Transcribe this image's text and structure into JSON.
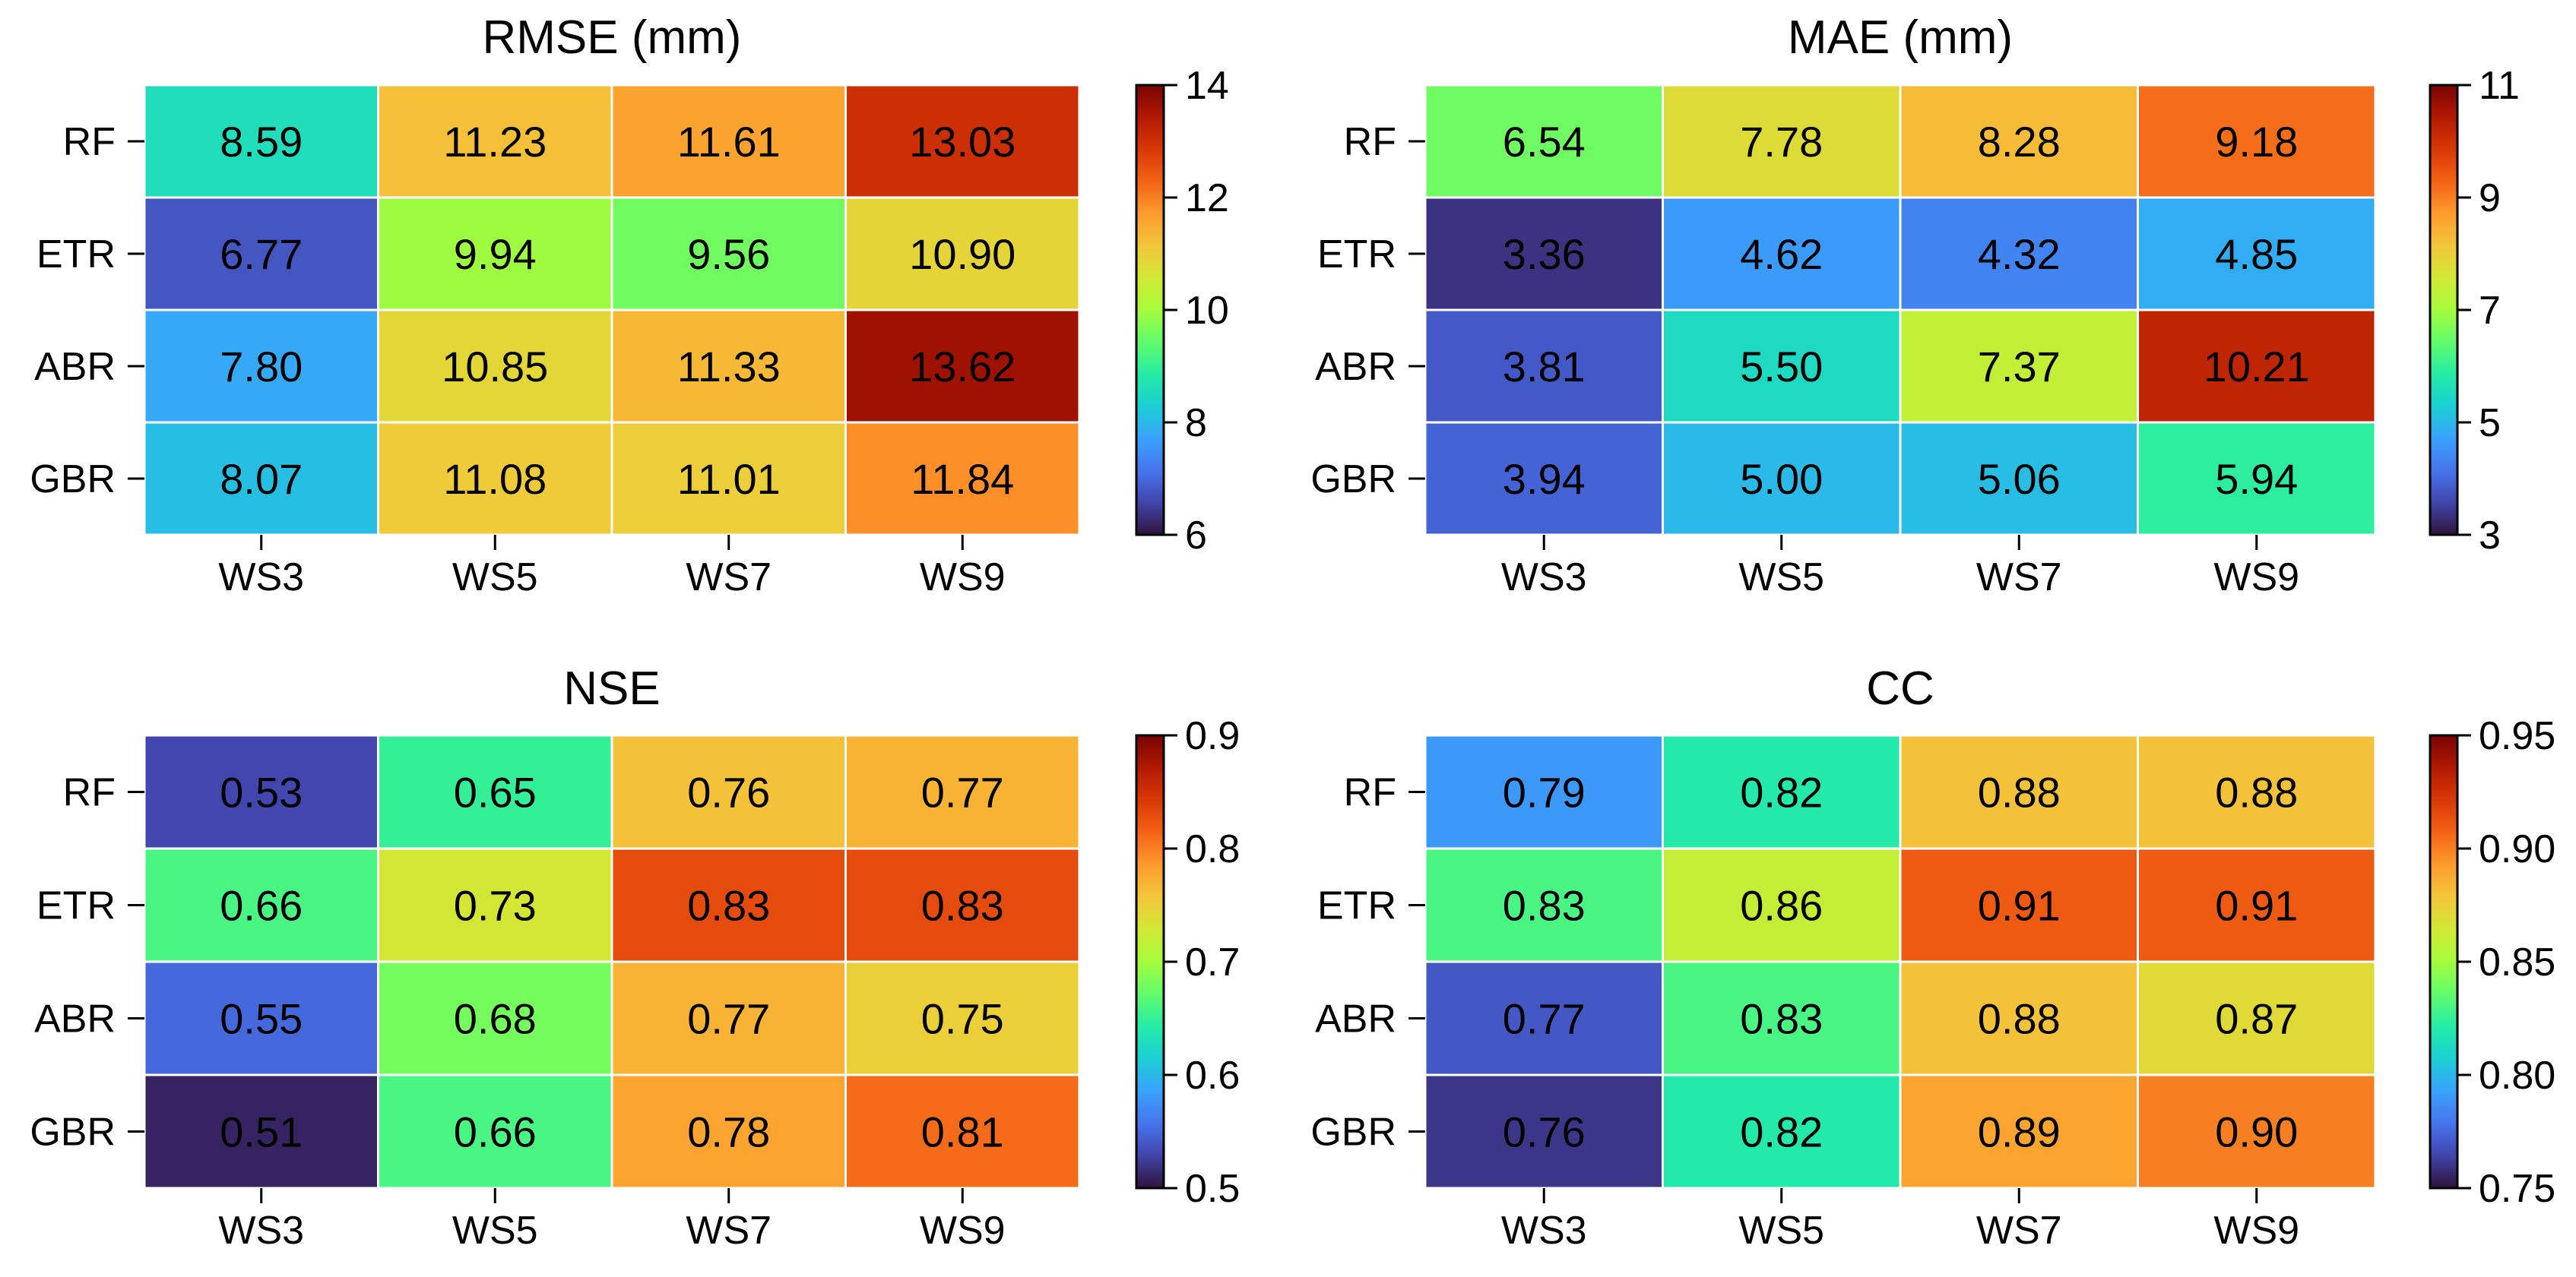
{
  "colormap": [
    "#30123b",
    "#4145ab",
    "#4675ed",
    "#39a2fc",
    "#1bcfd4",
    "#24eca6",
    "#61fc6c",
    "#a4fc3b",
    "#d1e834",
    "#f3c63a",
    "#fe9b2d",
    "#f36315",
    "#d93806",
    "#b11901",
    "#7a0402"
  ],
  "chart_data": [
    {
      "type": "heatmap",
      "title": "RMSE (mm)",
      "rows": [
        "RF",
        "ETR",
        "ABR",
        "GBR"
      ],
      "columns": [
        "WS3",
        "WS5",
        "WS7",
        "WS9"
      ],
      "values": [
        [
          8.59,
          11.23,
          11.61,
          13.03
        ],
        [
          6.77,
          9.94,
          9.56,
          10.9
        ],
        [
          7.8,
          10.85,
          11.33,
          13.62
        ],
        [
          8.07,
          11.08,
          11.01,
          11.84
        ]
      ],
      "labels": [
        [
          "8.59",
          "11.23",
          "11.61",
          "13.03"
        ],
        [
          "6.77",
          "9.94",
          "9.56",
          "10.90"
        ],
        [
          "7.80",
          "10.85",
          "11.33",
          "13.62"
        ],
        [
          "8.07",
          "11.08",
          "11.01",
          "11.84"
        ]
      ],
      "vmin": 6,
      "vmax": 14,
      "colorbar_ticks": [
        "6",
        "8",
        "10",
        "12",
        "14"
      ]
    },
    {
      "type": "heatmap",
      "title": "MAE (mm)",
      "rows": [
        "RF",
        "ETR",
        "ABR",
        "GBR"
      ],
      "columns": [
        "WS3",
        "WS5",
        "WS7",
        "WS9"
      ],
      "values": [
        [
          6.54,
          7.78,
          8.28,
          9.18
        ],
        [
          3.36,
          4.62,
          4.32,
          4.85
        ],
        [
          3.81,
          5.5,
          7.37,
          10.21
        ],
        [
          3.94,
          5.0,
          5.06,
          5.94
        ]
      ],
      "labels": [
        [
          "6.54",
          "7.78",
          "8.28",
          "9.18"
        ],
        [
          "3.36",
          "4.62",
          "4.32",
          "4.85"
        ],
        [
          "3.81",
          "5.50",
          "7.37",
          "10.21"
        ],
        [
          "3.94",
          "5.00",
          "5.06",
          "5.94"
        ]
      ],
      "vmin": 3,
      "vmax": 11,
      "colorbar_ticks": [
        "3",
        "5",
        "7",
        "9",
        "11"
      ]
    },
    {
      "type": "heatmap",
      "title": "NSE",
      "rows": [
        "RF",
        "ETR",
        "ABR",
        "GBR"
      ],
      "columns": [
        "WS3",
        "WS5",
        "WS7",
        "WS9"
      ],
      "values": [
        [
          0.53,
          0.65,
          0.76,
          0.77
        ],
        [
          0.66,
          0.73,
          0.83,
          0.83
        ],
        [
          0.55,
          0.68,
          0.77,
          0.75
        ],
        [
          0.51,
          0.66,
          0.78,
          0.81
        ]
      ],
      "labels": [
        [
          "0.53",
          "0.65",
          "0.76",
          "0.77"
        ],
        [
          "0.66",
          "0.73",
          "0.83",
          "0.83"
        ],
        [
          "0.55",
          "0.68",
          "0.77",
          "0.75"
        ],
        [
          "0.51",
          "0.66",
          "0.78",
          "0.81"
        ]
      ],
      "vmin": 0.5,
      "vmax": 0.9,
      "colorbar_ticks": [
        "0.5",
        "0.6",
        "0.7",
        "0.8",
        "0.9"
      ]
    },
    {
      "type": "heatmap",
      "title": "CC",
      "rows": [
        "RF",
        "ETR",
        "ABR",
        "GBR"
      ],
      "columns": [
        "WS3",
        "WS5",
        "WS7",
        "WS9"
      ],
      "values": [
        [
          0.79,
          0.82,
          0.88,
          0.88
        ],
        [
          0.83,
          0.86,
          0.91,
          0.91
        ],
        [
          0.77,
          0.83,
          0.88,
          0.87
        ],
        [
          0.76,
          0.82,
          0.89,
          0.9
        ]
      ],
      "labels": [
        [
          "0.79",
          "0.82",
          "0.88",
          "0.88"
        ],
        [
          "0.83",
          "0.86",
          "0.91",
          "0.91"
        ],
        [
          "0.77",
          "0.83",
          "0.88",
          "0.87"
        ],
        [
          "0.76",
          "0.82",
          "0.89",
          "0.90"
        ]
      ],
      "vmin": 0.75,
      "vmax": 0.95,
      "colorbar_ticks": [
        "0.75",
        "0.80",
        "0.85",
        "0.90",
        "0.95"
      ]
    }
  ]
}
